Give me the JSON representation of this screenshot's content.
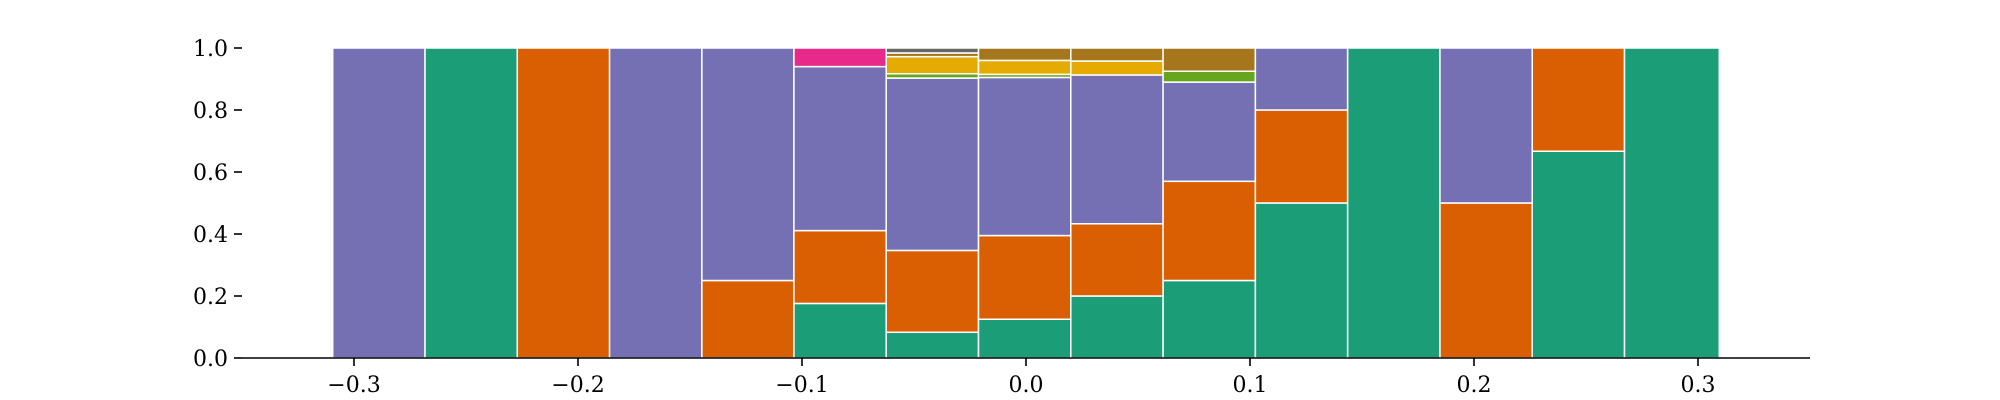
{
  "chart_data": {
    "type": "bar",
    "stacked": true,
    "normalized": true,
    "title": "",
    "xlabel": "",
    "ylabel": "",
    "xlim": [
      -0.35,
      0.35
    ],
    "ylim": [
      0,
      1
    ],
    "legend": "none",
    "grid": false,
    "x_ticks": [
      -0.3,
      -0.2,
      -0.1,
      0.0,
      0.1,
      0.2,
      0.3
    ],
    "x_tick_labels": [
      "−0.3",
      "−0.2",
      "−0.1",
      "0.0",
      "0.1",
      "0.2",
      "0.3"
    ],
    "y_ticks": [
      0.0,
      0.2,
      0.4,
      0.6,
      0.8,
      1.0
    ],
    "y_tick_labels": [
      "0.0",
      "0.2",
      "0.4",
      "0.6",
      "0.8",
      "1.0"
    ],
    "bin_edges": [
      -0.3095,
      -0.2683,
      -0.2271,
      -0.1859,
      -0.1447,
      -0.1036,
      -0.0624,
      -0.0212,
      0.02,
      0.0612,
      0.1024,
      0.1436,
      0.1848,
      0.226,
      0.2672,
      0.3095
    ],
    "series": [
      {
        "color": "#1b9e77",
        "values": [
          0,
          1,
          0,
          0,
          0,
          0.176,
          0.083,
          0.125,
          0.2,
          0.25,
          0.5,
          1,
          0,
          0.667,
          1
        ]
      },
      {
        "color": "#d95f02",
        "values": [
          0,
          0,
          1,
          0,
          0.25,
          0.235,
          0.264,
          0.27,
          0.233,
          0.32,
          0.3,
          0,
          0.5,
          0.333,
          0
        ]
      },
      {
        "color": "#7570b3",
        "values": [
          1,
          0,
          0,
          1,
          0.75,
          0.529,
          0.556,
          0.51,
          0.48,
          0.32,
          0.2,
          0,
          0.5,
          0,
          0
        ]
      },
      {
        "color": "#e7298a",
        "values": [
          0,
          0,
          0,
          0,
          0,
          0.06,
          0,
          0,
          0,
          0,
          0,
          0,
          0,
          0,
          0
        ]
      },
      {
        "color": "#66a61e",
        "values": [
          0,
          0,
          0,
          0,
          0,
          0,
          0.014,
          0.01,
          0,
          0.035,
          0,
          0,
          0,
          0,
          0
        ]
      },
      {
        "color": "#e6ab02",
        "values": [
          0,
          0,
          0,
          0,
          0,
          0,
          0.055,
          0.045,
          0.045,
          0,
          0,
          0,
          0,
          0,
          0
        ]
      },
      {
        "color": "#a6761d",
        "values": [
          0,
          0,
          0,
          0,
          0,
          0,
          0.012,
          0.04,
          0.042,
          0.075,
          0,
          0,
          0,
          0,
          0
        ]
      },
      {
        "color": "#666666",
        "values": [
          0,
          0,
          0,
          0,
          0,
          0,
          0.016,
          0,
          0,
          0,
          0,
          0,
          0,
          0,
          0
        ]
      }
    ]
  }
}
